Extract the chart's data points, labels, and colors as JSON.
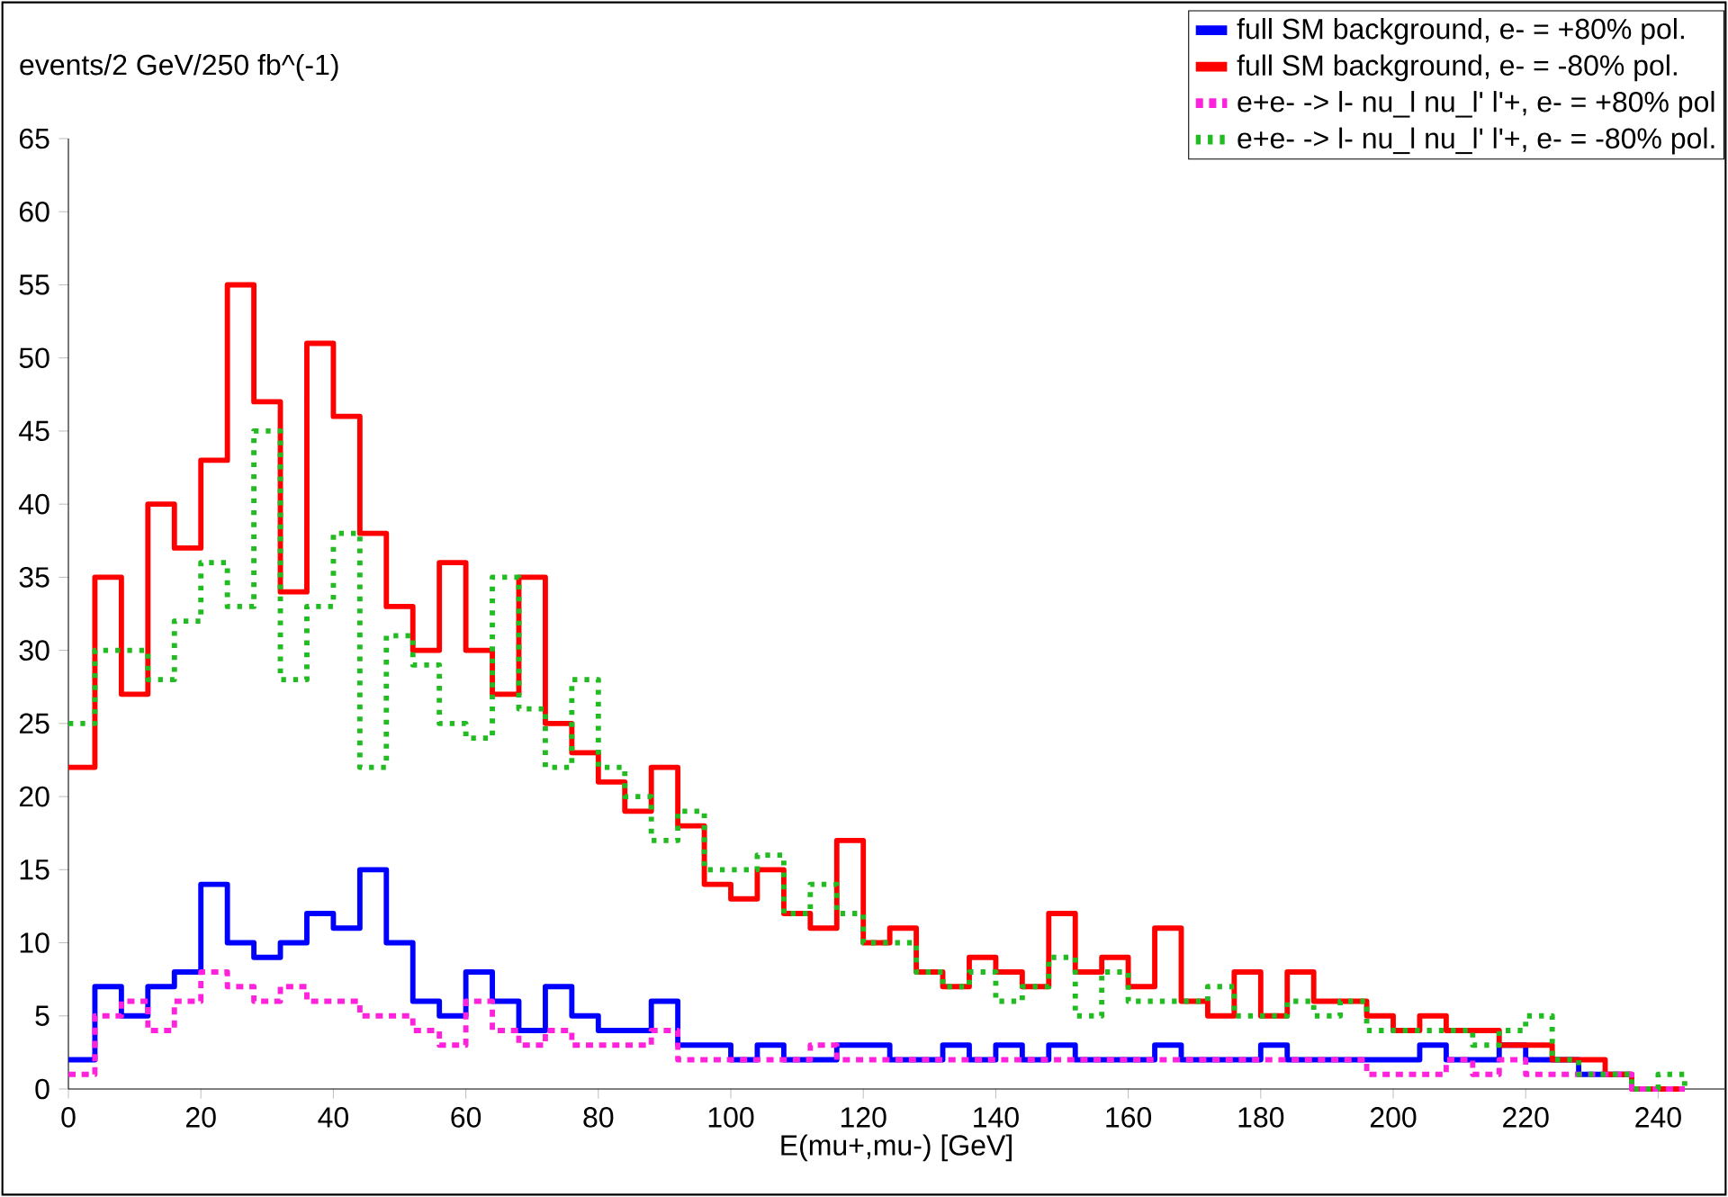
{
  "chart_data": {
    "type": "step",
    "xlabel": "E(mu+,mu-) [GeV]",
    "ylabel": "events/2 GeV/250 fb^(-1)",
    "xlim": [
      0,
      250
    ],
    "ylim": [
      0,
      65
    ],
    "xticks": [
      0,
      20,
      40,
      60,
      80,
      100,
      120,
      140,
      160,
      180,
      200,
      220,
      240
    ],
    "yticks": [
      0,
      5,
      10,
      15,
      20,
      25,
      30,
      35,
      40,
      45,
      50,
      55,
      60,
      65
    ],
    "grid": false,
    "legend": "top right",
    "x": [
      0,
      4,
      8,
      12,
      16,
      20,
      24,
      28,
      32,
      36,
      40,
      44,
      48,
      52,
      56,
      60,
      64,
      68,
      72,
      76,
      80,
      84,
      88,
      92,
      96,
      100,
      104,
      108,
      112,
      116,
      120,
      124,
      128,
      132,
      136,
      140,
      144,
      148,
      152,
      156,
      160,
      164,
      168,
      172,
      176,
      180,
      184,
      188,
      192,
      196,
      200,
      204,
      208,
      212,
      216,
      220,
      224,
      228,
      232,
      236,
      240,
      244
    ],
    "series": [
      {
        "name": "full SM background, e- = +80% pol.",
        "color": "#0000ff",
        "line_style": "solid",
        "values": [
          2,
          7,
          5,
          7,
          8,
          14,
          10,
          9,
          10,
          12,
          11,
          15,
          10,
          6,
          5,
          8,
          6,
          4,
          7,
          5,
          4,
          4,
          6,
          3,
          3,
          2,
          3,
          2,
          2,
          3,
          3,
          2,
          2,
          3,
          2,
          3,
          2,
          3,
          2,
          2,
          2,
          3,
          2,
          2,
          2,
          3,
          2,
          2,
          2,
          2,
          2,
          3,
          2,
          2,
          3,
          2,
          2,
          1,
          1,
          0,
          null,
          null
        ]
      },
      {
        "name": "full SM background, e- = -80% pol.",
        "color": "#ff0000",
        "line_style": "solid",
        "values": [
          22,
          35,
          27,
          40,
          37,
          43,
          55,
          47,
          34,
          51,
          46,
          38,
          33,
          30,
          36,
          30,
          27,
          35,
          25,
          23,
          21,
          19,
          22,
          18,
          14,
          13,
          15,
          12,
          11,
          17,
          10,
          11,
          8,
          7,
          9,
          8,
          7,
          12,
          8,
          9,
          7,
          11,
          6,
          5,
          8,
          5,
          8,
          6,
          6,
          5,
          4,
          5,
          4,
          4,
          3,
          3,
          2,
          2,
          1,
          0,
          0,
          0
        ]
      },
      {
        "name": "e+e- -> l- nu_l nu_l' l'+, e- = +80% pol",
        "color": "#ff22dd",
        "line_style": "dashed",
        "values": [
          1,
          5,
          6,
          4,
          6,
          8,
          7,
          6,
          7,
          6,
          6,
          5,
          5,
          4,
          3,
          6,
          4,
          3,
          4,
          3,
          3,
          3,
          4,
          2,
          2,
          2,
          2,
          2,
          3,
          2,
          2,
          2,
          2,
          2,
          2,
          2,
          2,
          2,
          2,
          2,
          2,
          2,
          2,
          2,
          2,
          2,
          2,
          2,
          2,
          1,
          1,
          1,
          2,
          1,
          2,
          1,
          1,
          1,
          1,
          0,
          0,
          0
        ]
      },
      {
        "name": "e+e- -> l- nu_l nu_l' l'+, e- = -80% pol.",
        "color": "#22bb22",
        "line_style": "dotted",
        "values": [
          25,
          30,
          30,
          28,
          32,
          36,
          33,
          45,
          28,
          33,
          38,
          22,
          31,
          29,
          25,
          24,
          35,
          26,
          22,
          28,
          22,
          20,
          17,
          19,
          15,
          15,
          16,
          12,
          14,
          12,
          10,
          10,
          8,
          7,
          8,
          6,
          7,
          9,
          5,
          8,
          6,
          6,
          6,
          7,
          5,
          5,
          6,
          5,
          6,
          4,
          4,
          4,
          4,
          3,
          4,
          5,
          2,
          1,
          1,
          0,
          1,
          0
        ]
      }
    ]
  }
}
